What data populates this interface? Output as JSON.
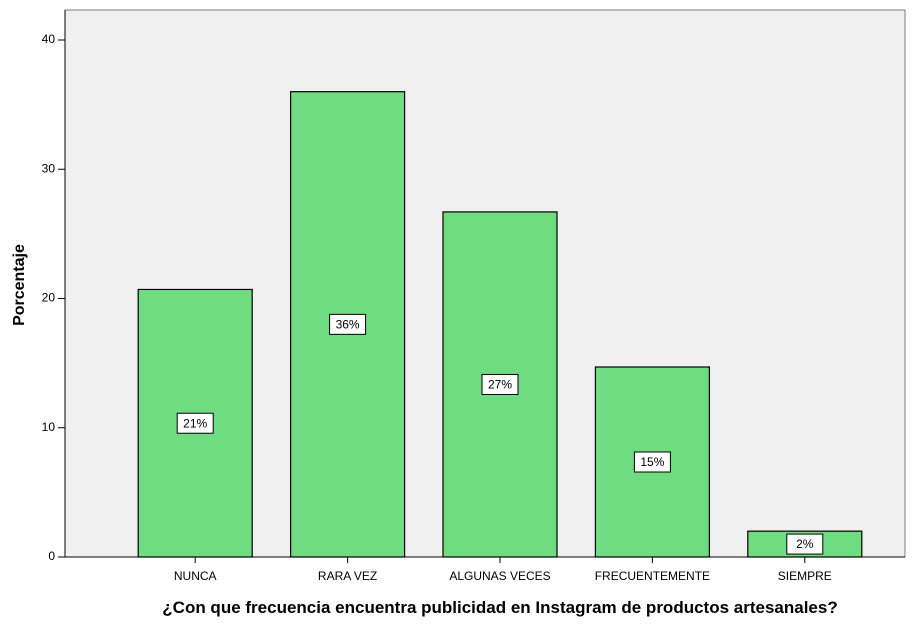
{
  "chart_data": {
    "type": "bar",
    "x_label": "¿Con que frecuencia encuentra publicidad en Instagram de productos artesanales?",
    "y_label": "Porcentaje",
    "categories": [
      "NUNCA",
      "RARA VEZ",
      "ALGUNAS VECES",
      "FRECUENTEMENTE",
      "SIEMPRE"
    ],
    "values": [
      20.7,
      36.0,
      26.7,
      14.7,
      2.0
    ],
    "value_labels": [
      "21%",
      "36%",
      "27%",
      "15%",
      "2%"
    ],
    "color": "#6fdc82",
    "ylim": [
      0,
      40
    ],
    "yticks": [
      0,
      10,
      20,
      30,
      40
    ],
    "grid": false
  }
}
